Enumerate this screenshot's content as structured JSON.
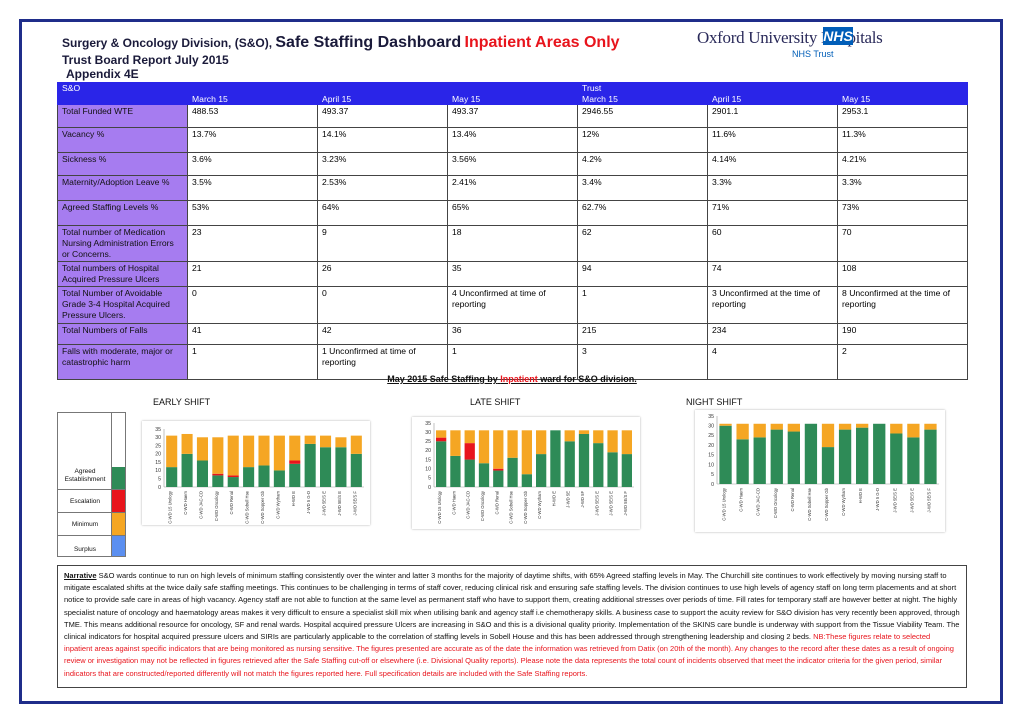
{
  "header": {
    "title_prefix": "Surgery & Oncology Division, (S&O),",
    "title_main": "Safe Staffing Dashboard",
    "title_red": "Inpatient Areas Only",
    "report": "Trust Board Report July 2015",
    "appendix": "Appendix 4E"
  },
  "logo": {
    "name": "Oxford University Hospitals",
    "nhs": "NHS",
    "trust": "NHS Trust"
  },
  "table": {
    "group_so": "S&O",
    "group_trust": "Trust",
    "months": [
      "March 15",
      "April 15",
      "May 15",
      "March 15",
      "April 15",
      "May 15"
    ],
    "rows": [
      {
        "label": "Total Funded WTE",
        "values": [
          "488.53",
          "493.37",
          "493.37",
          "2946.55",
          "2901.1",
          "2953.1"
        ]
      },
      {
        "label": "Vacancy %",
        "values": [
          "13.7%",
          "14.1%",
          "13.4%",
          "12%",
          "11.6%",
          "11.3%"
        ]
      },
      {
        "label": "Sickness %",
        "values": [
          "3.6%",
          "3.23%",
          "3.56%",
          "4.2%",
          "4.14%",
          "4.21%"
        ]
      },
      {
        "label": "Maternity/Adoption Leave %",
        "values": [
          "3.5%",
          "2.53%",
          "2.41%",
          "3.4%",
          "3.3%",
          "3.3%"
        ]
      },
      {
        "label": "Agreed Staffing Levels %",
        "values": [
          "53%",
          "64%",
          "65%",
          "62.7%",
          "71%",
          "73%"
        ]
      },
      {
        "label": "Total number of Medication Nursing Administration Errors or Concerns.",
        "values": [
          "23",
          "9",
          "18",
          "62",
          "60",
          "70"
        ]
      },
      {
        "label": "Total numbers of Hospital Acquired Pressure Ulcers",
        "values": [
          "21",
          "26",
          "35",
          "94",
          "74",
          "108"
        ]
      },
      {
        "label": "Total Number of Avoidable Grade 3-4 Hospital Acquired Pressure Ulcers.",
        "values": [
          "0",
          "0",
          "4 Unconfirmed at time of reporting",
          "1",
          "3 Unconfirmed at the time of reporting",
          "8 Unconfirmed at the time of reporting"
        ]
      },
      {
        "label": "Total Numbers of Falls",
        "values": [
          "41",
          "42",
          "36",
          "215",
          "234",
          "190"
        ]
      },
      {
        "label": "Falls with moderate, major or catastrophic harm",
        "values": [
          "1",
          "1 Unconfirmed at time of reporting",
          "1",
          "3",
          "4",
          "2"
        ]
      }
    ]
  },
  "subtitle": {
    "pre": "May 2015 Safe Staffing by",
    "red": "Inpatient",
    "post": "ward for S&O division."
  },
  "shifts": {
    "early": "EARLY SHIFT",
    "late": "LATE  SHIFT",
    "night": "NIGHT SHIFT"
  },
  "legend": {
    "agreed": "Agreed Establishment",
    "escalation": "Escalation",
    "minimum": "Minimum",
    "surplus": "Surplus"
  },
  "colors": {
    "agreed": "#2e8b57",
    "escalation": "#e8141c",
    "minimum": "#f5a623",
    "surplus": "#5b8ff0",
    "header_blue": "#2a25e8",
    "label_purple": "#a67cf0"
  },
  "chart_data": [
    {
      "type": "bar",
      "title": "EARLY SHIFT",
      "ylim": [
        0,
        35
      ],
      "yticks": [
        0,
        5,
        10,
        15,
        20,
        25,
        30,
        35
      ],
      "categories": [
        "C-WD 15 Urology",
        "C-WD Haem",
        "C-WD JAC-CD",
        "C-WD Oncology",
        "C-WD Renal",
        "C-WD Sobell Hse",
        "C-WD Sopper Gb",
        "C-WD Wytham",
        "H-WD E",
        "J-WD 5 G-D",
        "J-WD 5E/S E",
        "J-WD 5E/S E",
        "J-WD 5E/S F"
      ],
      "series": [
        {
          "name": "Agreed Establishment",
          "values": [
            12,
            20,
            16,
            7,
            6,
            12,
            13,
            10,
            14,
            26,
            24,
            24,
            20
          ]
        },
        {
          "name": "Escalation",
          "values": [
            0,
            0,
            0,
            1,
            1,
            0,
            0,
            0,
            2,
            0,
            0,
            0,
            0
          ]
        },
        {
          "name": "Minimum",
          "values": [
            19,
            12,
            14,
            22,
            24,
            19,
            18,
            21,
            15,
            5,
            7,
            6,
            11
          ]
        },
        {
          "name": "Surplus",
          "values": [
            0,
            0,
            0,
            0,
            0,
            0,
            0,
            0,
            0,
            0,
            0,
            0,
            0
          ]
        }
      ]
    },
    {
      "type": "bar",
      "title": "LATE  SHIFT",
      "ylim": [
        0,
        35
      ],
      "yticks": [
        0,
        5,
        10,
        15,
        20,
        25,
        30,
        35
      ],
      "categories": [
        "C-WD 15 Urology",
        "C-WD Haem",
        "C-WD JAC-CD",
        "C-WD Oncology",
        "C-WD Renal",
        "C-WD Sobell Hse",
        "C-WD Sopper Gb",
        "C-WD Wytham",
        "H-WD E",
        "J-WD 5E",
        "J-WD 5F",
        "J-WD 5E/S E",
        "J-WD 5E/S E",
        "J-WD 5E/S F"
      ],
      "series": [
        {
          "name": "Agreed Establishment",
          "values": [
            25,
            17,
            15,
            13,
            9,
            16,
            7,
            18,
            31,
            25,
            29,
            24,
            19,
            18
          ]
        },
        {
          "name": "Escalation",
          "values": [
            2,
            0,
            9,
            0,
            1,
            0,
            0,
            0,
            0,
            0,
            0,
            0,
            0,
            0
          ]
        },
        {
          "name": "Minimum",
          "values": [
            4,
            14,
            7,
            18,
            21,
            15,
            24,
            13,
            0,
            6,
            2,
            7,
            12,
            13
          ]
        },
        {
          "name": "Surplus",
          "values": [
            0,
            0,
            0,
            0,
            0,
            0,
            0,
            0,
            0,
            0,
            0,
            0,
            0,
            0
          ]
        }
      ]
    },
    {
      "type": "bar",
      "title": "NIGHT SHIFT",
      "ylim": [
        0,
        35
      ],
      "yticks": [
        0,
        5,
        10,
        15,
        20,
        25,
        30,
        35
      ],
      "categories": [
        "C-WD 15 Urology",
        "C-WD Haem",
        "C-WD JAC-CD",
        "C-WD Oncology",
        "C-WD Renal",
        "C-WD Sobell Hse",
        "C-WD Sopper Gb",
        "C-WD Wytham",
        "H-WD E",
        "J-WD 5 G-D",
        "J-WD 5E/S E",
        "J-WD 5E/S E",
        "J-WD 5E/S F"
      ],
      "series": [
        {
          "name": "Agreed Establishment",
          "values": [
            30,
            23,
            24,
            28,
            27,
            31,
            19,
            28,
            29,
            31,
            26,
            24,
            28
          ]
        },
        {
          "name": "Escalation",
          "values": [
            0,
            0,
            0,
            0,
            0,
            0,
            0,
            0,
            0,
            0,
            0,
            0,
            0
          ]
        },
        {
          "name": "Minimum",
          "values": [
            1,
            8,
            7,
            3,
            4,
            0,
            12,
            3,
            2,
            0,
            5,
            7,
            3
          ]
        },
        {
          "name": "Surplus",
          "values": [
            0,
            0,
            0,
            0,
            0,
            0,
            0,
            0,
            0,
            0,
            0,
            0,
            0
          ]
        }
      ]
    }
  ],
  "narrative": {
    "label": "Narrative",
    "text": " S&O wards continue to run on high levels of minimum staffing consistently over the winter and latter 3 months for the majority of daytime shifts, with 65% Agreed staffing levels in May. The Churchill site continues to work effectively by moving nursing staff to mitigate escalated shifts at the twice daily safe staffing meetings. This continues to be challenging in terms of staff cover, reducing clinical risk and ensuring safe staffing levels. The division continues to use high levels of agency staff on long term placements and at short notice to provide safe care in areas of high vacancy. Agency staff are not able to function at the same level as permanent staff who have to support them, creating additional stresses over periods of time. Fill rates for temporary staff are however better at night. The highly specialist nature of oncology and haematology areas makes it very difficult to ensure a specialist skill mix when utilising bank and agency staff i.e chemotherapy skills. A business case to support the acuity review for S&O division has very recently been approved, through TME. This means additional resource for oncology, SF and renal wards. Hospital acquired pressure Ulcers are increasing in S&O and this is  a divisional quality priority. Implementation of the SKINS care bundle is underway with support from the Tissue Viability Team. The clinical indicators for hospital acquired pressure ulcers and SIRIs are particularly applicable to the correlation of staffing levels in Sobell House and this has been addressed through strengthening leadership and closing 2 beds. ",
    "red": "NB:These figures relate to selected inpatient areas against specific indicators that are being monitored as nursing sensitive. The figures presented are accurate as of the date the information was retrieved from Datix (on 20th of the month). Any changes to the record after these dates as a result of ongoing review or investigation may not be reflected in figures retrieved after the Safe Staffing cut-off or elsewhere (i.e. Divisional Quality reports). Please note the data represents the total count of incidents observed that meet the indicator criteria for the given period, similar indicators that are constructed/reported differently will not match the figures reported here. Full specification details are included with the Safe Staffing reports."
  }
}
